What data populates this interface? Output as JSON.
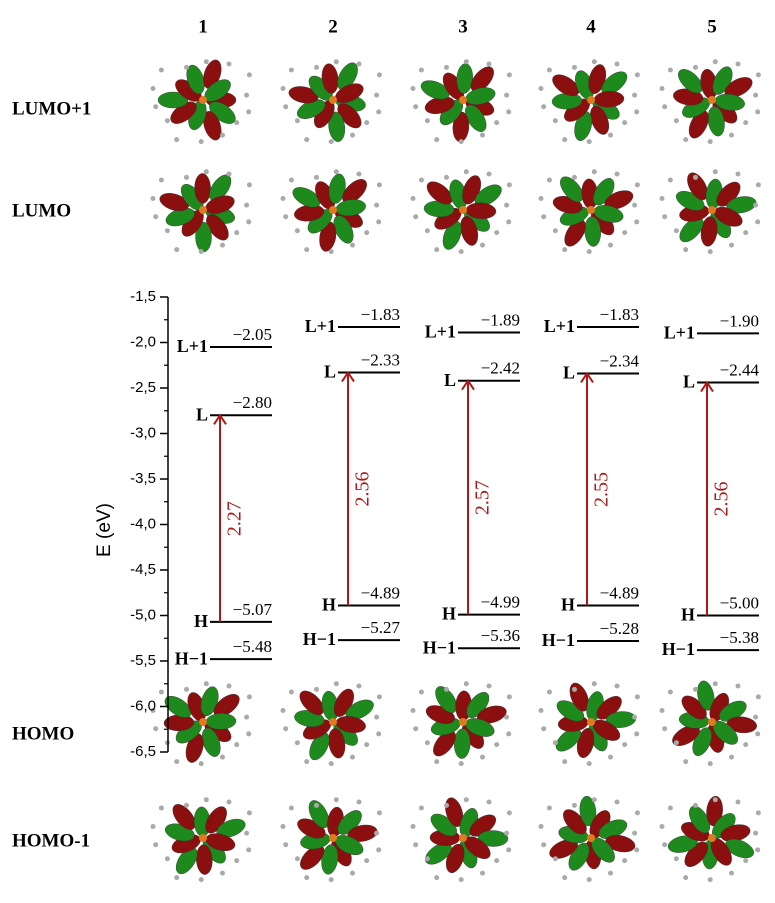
{
  "chart_data": {
    "type": "energy",
    "ylabel": "E (eV)",
    "ylim": [
      -6.5,
      -1.5
    ],
    "yticks": [
      {
        "value": -1.5,
        "label": "-1,5"
      },
      {
        "value": -2.0,
        "label": "-2,0"
      },
      {
        "value": -2.5,
        "label": "-2,5"
      },
      {
        "value": -3.0,
        "label": "-3,0"
      },
      {
        "value": -3.5,
        "label": "-3,5"
      },
      {
        "value": -4.0,
        "label": "-4,0"
      },
      {
        "value": -4.5,
        "label": "-4,5"
      },
      {
        "value": -5.0,
        "label": "-5,0"
      },
      {
        "value": -5.5,
        "label": "-5,5"
      },
      {
        "value": -6.0,
        "label": "-6,0"
      },
      {
        "value": -6.5,
        "label": "-6,5"
      }
    ],
    "categories": [
      "1",
      "2",
      "3",
      "4",
      "5"
    ],
    "rows": [
      "LUMO+1",
      "LUMO",
      "HOMO",
      "HOMO-1"
    ],
    "series": [
      {
        "name": "L+1",
        "color": "#000000",
        "values": [
          -2.05,
          -1.83,
          -1.89,
          -1.83,
          -1.9
        ],
        "value_labels": [
          "−2.05",
          "−1.83",
          "−1.89",
          "−1.83",
          "−1.90"
        ]
      },
      {
        "name": "L",
        "color": "#000000",
        "values": [
          -2.8,
          -2.33,
          -2.42,
          -2.34,
          -2.44
        ],
        "value_labels": [
          "−2.80",
          "−2.33",
          "−2.42",
          "−2.34",
          "−2.44"
        ]
      },
      {
        "name": "H",
        "color": "#000000",
        "values": [
          -5.07,
          -4.89,
          -4.99,
          -4.89,
          -5.0
        ],
        "value_labels": [
          "−5.07",
          "−4.89",
          "−4.99",
          "−4.89",
          "−5.00"
        ]
      },
      {
        "name": "H−1",
        "color": "#000000",
        "values": [
          -5.48,
          -5.27,
          -5.36,
          -5.28,
          -5.38
        ],
        "value_labels": [
          "−5.48",
          "−5.27",
          "−5.36",
          "−5.28",
          "−5.38"
        ]
      }
    ],
    "gaps": {
      "color": "#b01818",
      "values": [
        2.27,
        2.56,
        2.57,
        2.55,
        2.56
      ]
    }
  }
}
